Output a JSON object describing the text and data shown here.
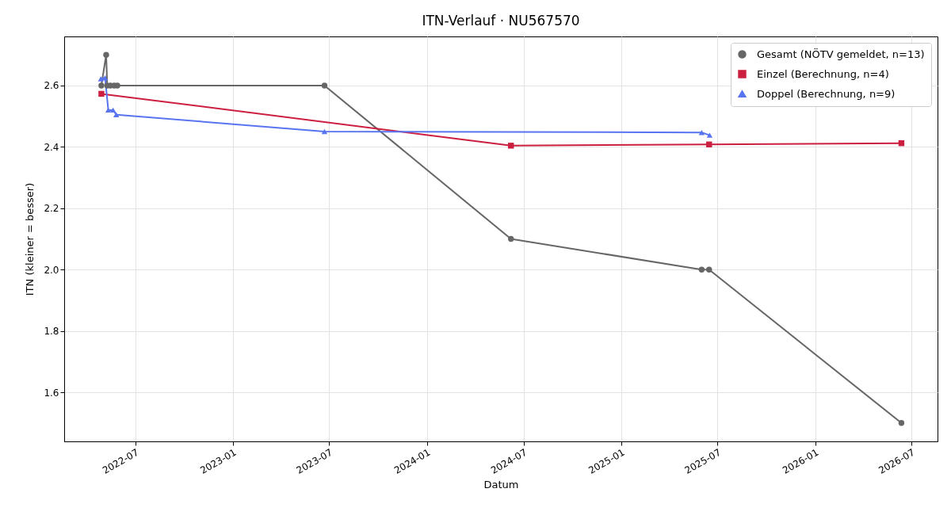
{
  "chart_data": {
    "type": "line",
    "title": "ITN-Verlauf · NU567570",
    "xlabel": "Datum",
    "ylabel": "ITN  (kleiner = besser)",
    "xlim": [
      "2022-02-17",
      "2026-08-19"
    ],
    "xticks": [
      "2022-07",
      "2023-01",
      "2023-07",
      "2024-01",
      "2024-07",
      "2025-01",
      "2025-07",
      "2026-01",
      "2026-07"
    ],
    "ylim": [
      1.44,
      2.76
    ],
    "yticks": [
      1.6,
      1.8,
      {
        "value": 2.0,
        "label": "2.0"
      },
      2.2,
      2.4,
      2.6
    ],
    "grid": true,
    "legend": "top right",
    "line_style": "solid",
    "series": [
      {
        "name": "Gesamt (NÖTV gemeldet, n=13)",
        "color": "#666666",
        "marker": "circle",
        "x": [
          "2022-04-28",
          "2022-05-07",
          "2022-05-09",
          "2022-05-15",
          "2022-05-22",
          "2022-05-28",
          "2023-06-22",
          "2024-06-07",
          "2025-06-01",
          "2025-06-15",
          "2026-06-12"
        ],
        "values": [
          2.6,
          2.7,
          2.6,
          2.6,
          2.6,
          2.6,
          2.6,
          2.1,
          2.0,
          2.0,
          1.5
        ]
      },
      {
        "name": "Einzel (Berechnung, n=4)",
        "color": "#cc1f3f",
        "marker": "square",
        "x": [
          "2022-04-28",
          "2024-06-07",
          "2025-06-15",
          "2026-06-12"
        ],
        "values": [
          2.573,
          2.404,
          2.408,
          2.412
        ]
      },
      {
        "name": "Doppel (Berechnung, n=9)",
        "color": "#5874f0",
        "marker": "triangle",
        "x": [
          "2022-04-27",
          "2022-05-05",
          "2022-05-11",
          "2022-05-20",
          "2022-05-26",
          "2023-06-22",
          "2025-06-01",
          "2025-06-16"
        ],
        "values": [
          2.622,
          2.625,
          2.52,
          2.52,
          2.505,
          2.45,
          2.447,
          2.438
        ]
      }
    ]
  }
}
